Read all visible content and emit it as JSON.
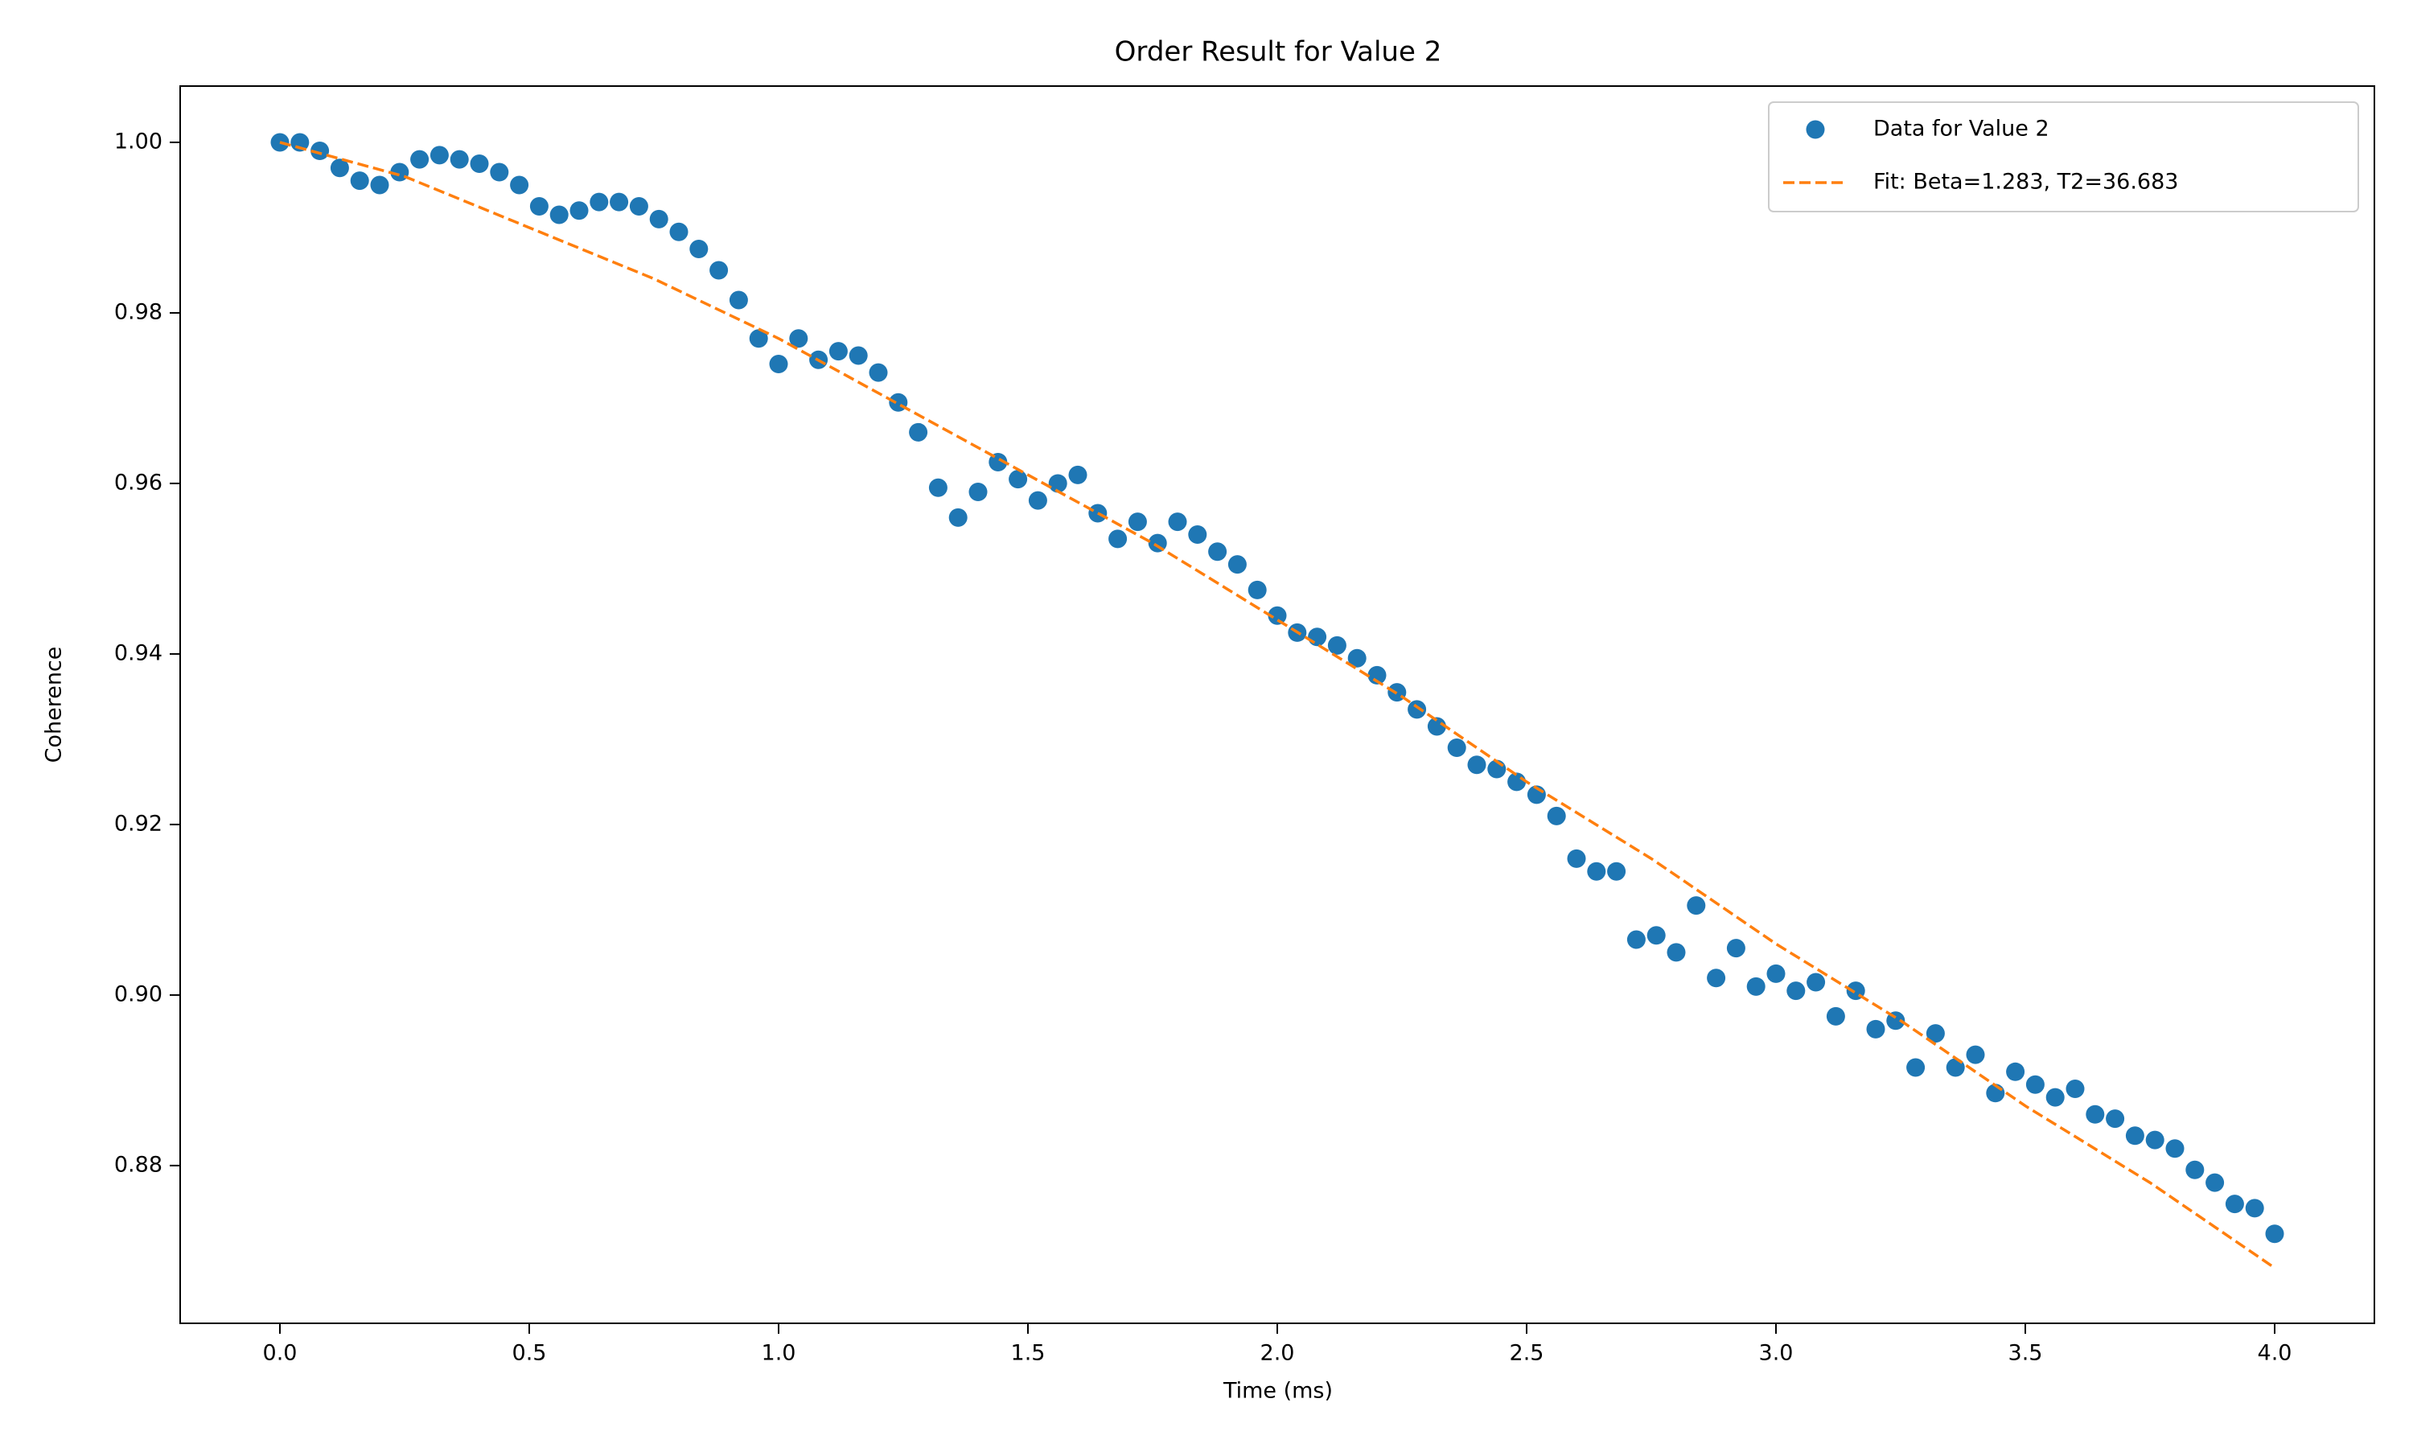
{
  "chart_data": {
    "type": "scatter",
    "title": "Order Result for Value 2",
    "xlabel": "Time (ms)",
    "ylabel": "Coherence",
    "xlim": [
      -0.2,
      4.2
    ],
    "ylim": [
      0.8615,
      1.0066
    ],
    "xticks": [
      {
        "value": 0,
        "label": "0.0"
      },
      {
        "value": 0.5,
        "label": "0.5"
      },
      {
        "value": 1,
        "label": "1.0"
      },
      {
        "value": 1.5,
        "label": "1.5"
      },
      {
        "value": 2,
        "label": "2.0"
      },
      {
        "value": 2.5,
        "label": "2.5"
      },
      {
        "value": 3,
        "label": "3.0"
      },
      {
        "value": 3.5,
        "label": "3.5"
      },
      {
        "value": 4,
        "label": "4.0"
      }
    ],
    "yticks": [
      {
        "value": 0.88,
        "label": "0.88"
      },
      {
        "value": 0.9,
        "label": "0.90"
      },
      {
        "value": 0.92,
        "label": "0.92"
      },
      {
        "value": 0.94,
        "label": "0.94"
      },
      {
        "value": 0.96,
        "label": "0.96"
      },
      {
        "value": 0.98,
        "label": "0.98"
      },
      {
        "value": 1,
        "label": "1.00"
      }
    ],
    "legend": "upper right",
    "series": [
      {
        "name": "Data for Value 2",
        "color": "#1f77b4",
        "type": "scatter",
        "x": [
          0,
          0.04,
          0.08,
          0.12,
          0.16,
          0.2,
          0.24,
          0.28,
          0.32,
          0.36,
          0.4,
          0.44,
          0.48,
          0.52,
          0.56,
          0.6,
          0.64,
          0.68,
          0.72,
          0.76,
          0.8,
          0.84,
          0.88,
          0.92,
          0.96,
          1,
          1.04,
          1.08,
          1.12,
          1.16,
          1.2,
          1.24,
          1.28,
          1.32,
          1.36,
          1.4,
          1.44,
          1.48,
          1.52,
          1.56,
          1.6,
          1.64,
          1.68,
          1.72,
          1.76,
          1.8,
          1.84,
          1.88,
          1.92,
          1.96,
          2,
          2.04,
          2.08,
          2.12,
          2.16,
          2.2,
          2.24,
          2.28,
          2.32,
          2.36,
          2.4,
          2.44,
          2.48,
          2.52,
          2.56,
          2.6,
          2.64,
          2.68,
          2.72,
          2.76,
          2.8,
          2.84,
          2.88,
          2.92,
          2.96,
          3,
          3.04,
          3.08,
          3.12,
          3.16,
          3.2,
          3.24,
          3.28,
          3.32,
          3.36,
          3.4,
          3.44,
          3.48,
          3.52,
          3.56,
          3.6,
          3.64,
          3.68,
          3.72,
          3.76,
          3.8,
          3.84,
          3.88,
          3.92,
          3.96,
          4
        ],
        "values": [
          1,
          1,
          0.999,
          0.997,
          0.9955,
          0.995,
          0.9965,
          0.998,
          0.9985,
          0.998,
          0.9975,
          0.9965,
          0.995,
          0.9925,
          0.9915,
          0.992,
          0.993,
          0.993,
          0.9925,
          0.991,
          0.9895,
          0.9875,
          0.985,
          0.9815,
          0.977,
          0.974,
          0.977,
          0.9745,
          0.9755,
          0.975,
          0.973,
          0.9695,
          0.966,
          0.9595,
          0.956,
          0.959,
          0.9625,
          0.9605,
          0.958,
          0.96,
          0.961,
          0.9565,
          0.9535,
          0.9555,
          0.953,
          0.9555,
          0.954,
          0.952,
          0.9505,
          0.9475,
          0.9445,
          0.9425,
          0.942,
          0.941,
          0.9395,
          0.9375,
          0.9355,
          0.9335,
          0.9315,
          0.929,
          0.927,
          0.9265,
          0.925,
          0.9235,
          0.921,
          0.916,
          0.9145,
          0.9145,
          0.9065,
          0.907,
          0.905,
          0.9105,
          0.902,
          0.9055,
          0.901,
          0.9025,
          0.9005,
          0.9015,
          0.8975,
          0.9005,
          0.896,
          0.897,
          0.8915,
          0.8955,
          0.8915,
          0.893,
          0.8885,
          0.891,
          0.8895,
          0.888,
          0.889,
          0.886,
          0.8855,
          0.8835,
          0.883,
          0.882,
          0.8795,
          0.878,
          0.8755,
          0.875,
          0.872
        ]
      },
      {
        "name": "Fit: Beta=1.283, T2=36.683",
        "color": "#ff7f0e",
        "type": "line",
        "linestyle": "dashed",
        "x": [
          0,
          0.25,
          0.5,
          0.75,
          1,
          1.25,
          1.5,
          1.75,
          2,
          2.25,
          2.5,
          2.75,
          3,
          3.25,
          3.5,
          3.75,
          4
        ],
        "values": [
          1,
          0.996,
          0.99,
          0.984,
          0.977,
          0.969,
          0.961,
          0.953,
          0.944,
          0.935,
          0.925,
          0.916,
          0.906,
          0.897,
          0.887,
          0.878,
          0.868
        ]
      }
    ]
  }
}
